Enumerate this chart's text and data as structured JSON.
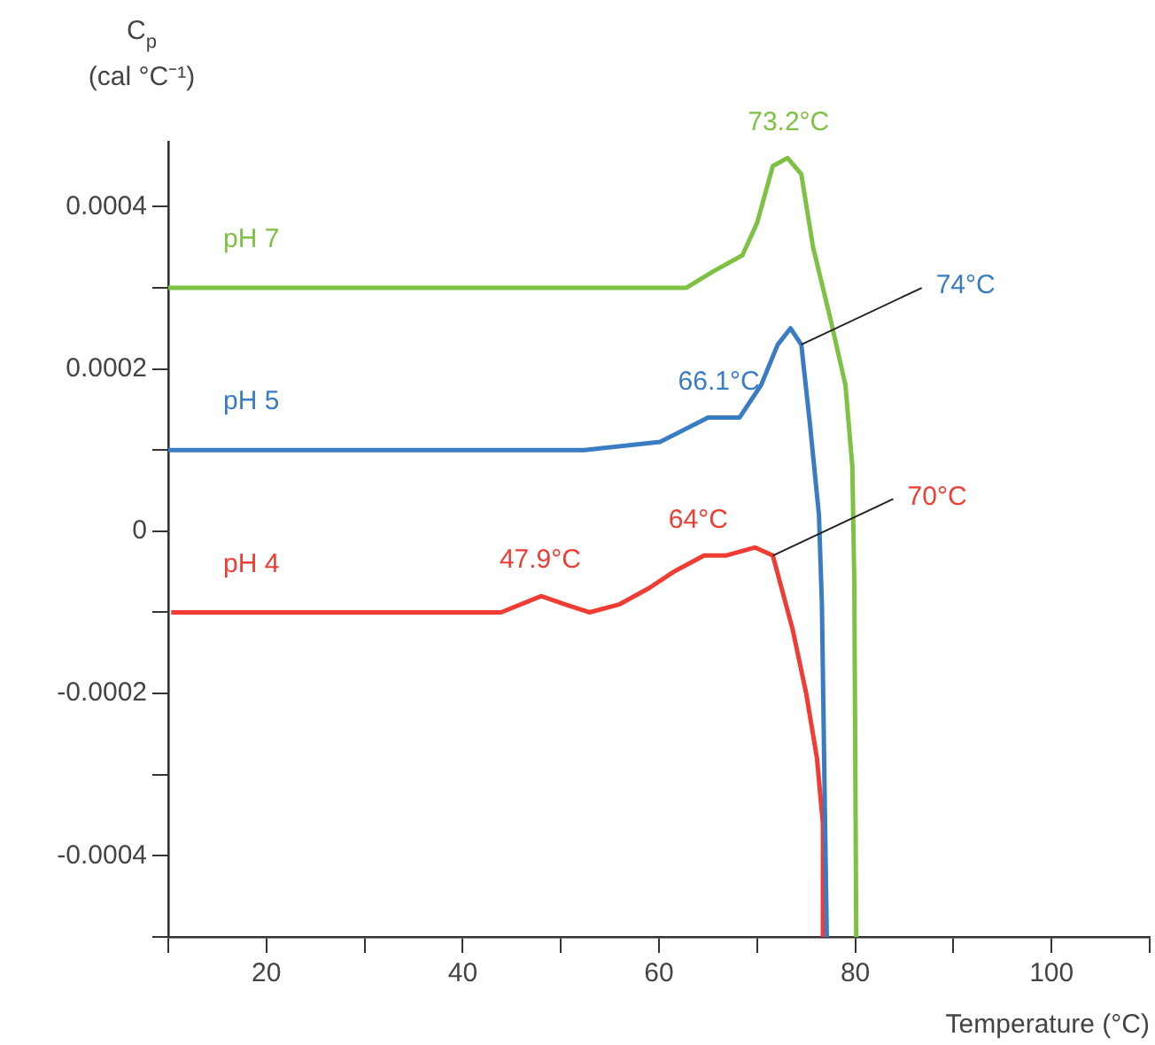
{
  "chart_data": {
    "type": "line",
    "xlabel": "Temperature (°C)",
    "ylabel": "C$_{p}$\n(cal °C⁻¹)",
    "xlim": [
      10,
      110
    ],
    "xticks": [
      {
        "value": 10,
        "label": null
      },
      20,
      {
        "value": 30,
        "label": null
      },
      40,
      {
        "value": 50,
        "label": null
      },
      60,
      {
        "value": 70,
        "label": null
      },
      80,
      {
        "value": 90,
        "label": null
      },
      100,
      {
        "value": 110,
        "label": null
      }
    ],
    "ylim": [
      -0.0005,
      0.00048
    ],
    "yticks": [
      {
        "value": -0.0005,
        "label": null
      },
      -0.0004,
      {
        "value": -0.0003,
        "label": null
      },
      -0.0002,
      {
        "value": -0.0001,
        "label": null
      },
      0,
      {
        "value": 0.0001,
        "label": null
      },
      0.0002,
      {
        "value": 0.0003,
        "label": null
      },
      0.0004
    ],
    "grid": false,
    "legend": false,
    "marker": "none",
    "line_style": "solid",
    "series": [
      {
        "name": "pH 7",
        "color": "#7dc242",
        "x": [
          10,
          34,
          34.5,
          62.8,
          65.5,
          68.5,
          70,
          71.6,
          73.1,
          74.5,
          75.7,
          77.5,
          79,
          79.7,
          79.9,
          80.1
        ],
        "values": [
          0.0003,
          0.0003,
          0.0003,
          0.0003,
          0.00032,
          0.00034,
          0.00038,
          0.00045,
          0.00046,
          0.00044,
          0.00035,
          0.00026,
          0.00018,
          8e-05,
          -6e-05,
          -0.0005
        ]
      },
      {
        "name": "pH 5",
        "color": "#3a7cc4",
        "x": [
          10,
          52.4,
          60.1,
          65,
          68.2,
          70.4,
          72.1,
          73.4,
          74.5,
          75.4,
          76.3,
          76.6,
          76.9,
          77.1
        ],
        "values": [
          0.0001,
          0.0001,
          0.00011,
          0.00014,
          0.00014,
          0.00018,
          0.00023,
          0.00025,
          0.00023,
          0.00013,
          2e-05,
          -9e-05,
          -0.00034,
          -0.0005
        ]
      },
      {
        "name": "pH 4",
        "color": "#f03c32",
        "x": [
          10.3,
          21.4,
          33.5,
          39.1,
          43.9,
          48,
          50.4,
          52.9,
          56,
          59,
          61.5,
          64.6,
          66.8,
          69.8,
          71.6,
          73.6,
          75,
          76.1,
          76.7,
          76.7
        ],
        "values": [
          -0.0001,
          -0.0001,
          -0.0001,
          -0.0001,
          -0.0001,
          -8e-05,
          -9e-05,
          -0.0001,
          -9e-05,
          -7e-05,
          -5e-05,
          -3e-05,
          -3e-05,
          -2e-05,
          -3e-05,
          -0.00012,
          -0.0002,
          -0.00028,
          -0.00036,
          -0.0005
        ]
      }
    ],
    "annotations": [
      {
        "text": "73.2°C",
        "x": 73.2,
        "y": 0.00046
      },
      {
        "text": "66.1°C",
        "x": 66.1,
        "y": 0.00014
      },
      {
        "text": "74°C",
        "x": 74.5,
        "y": 0.00023
      },
      {
        "text": "47.9°C",
        "x": 47.9,
        "y": -8e-05
      },
      {
        "text": "64°C",
        "x": 64,
        "y": -3e-05
      },
      {
        "text": "70°C",
        "x": 71.6,
        "y": -3e-05
      }
    ]
  }
}
